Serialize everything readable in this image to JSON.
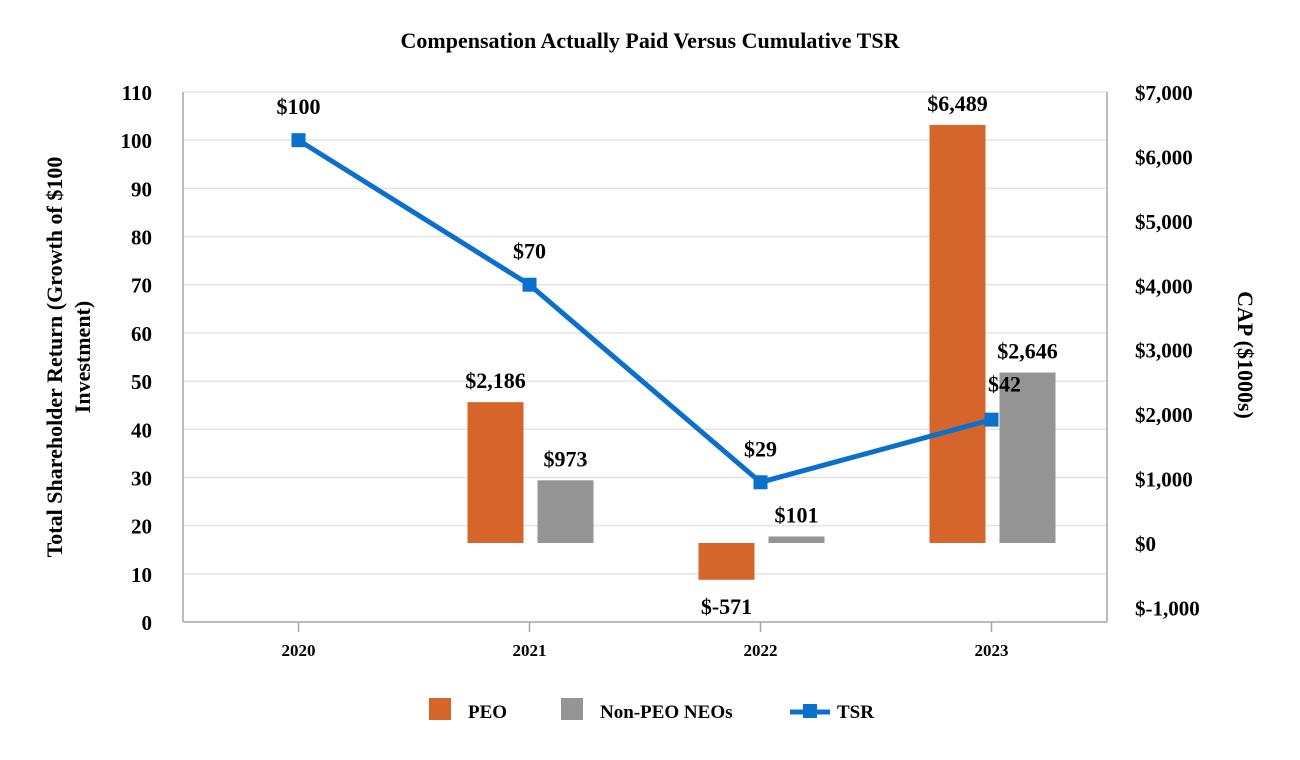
{
  "chart_data": {
    "type": "bar+line",
    "title": "Compensation Actually Paid Versus Cumulative TSR",
    "categories": [
      "2020",
      "2021",
      "2022",
      "2023"
    ],
    "y_left": {
      "label": "Total Shareholder Return (Growth of $100 Investment)",
      "label_lines": [
        "Total Shareholder Return (Growth of $100",
        "Investment)"
      ],
      "range": [
        0,
        110
      ],
      "ticks": [
        0,
        10,
        20,
        30,
        40,
        50,
        60,
        70,
        80,
        90,
        100,
        110
      ]
    },
    "y_right": {
      "label": "CAP ($1000s)",
      "range": [
        -1000,
        7000
      ],
      "ticks": [
        -1000,
        0,
        1000,
        2000,
        3000,
        4000,
        5000,
        6000,
        7000
      ],
      "tick_labels": [
        "$-1,000",
        "$0",
        "$1,000",
        "$2,000",
        "$3,000",
        "$4,000",
        "$5,000",
        "$6,000",
        "$7,000"
      ]
    },
    "grid": true,
    "legend_position": "bottom",
    "series": [
      {
        "name": "PEO",
        "type": "bar",
        "axis": "right",
        "color": "#D6652B",
        "values": [
          null,
          2186,
          -571,
          6489
        ],
        "labels": [
          "",
          "$2,186",
          "$-571",
          "$6,489"
        ]
      },
      {
        "name": "Non-PEO NEOs",
        "type": "bar",
        "axis": "right",
        "color": "#959595",
        "values": [
          null,
          973,
          101,
          2646
        ],
        "labels": [
          "",
          "$973",
          "$101",
          "$2,646"
        ]
      },
      {
        "name": "TSR",
        "type": "line",
        "axis": "left",
        "color": "#0B6FCC",
        "marker": "square",
        "values": [
          100,
          70,
          29,
          42
        ],
        "labels": [
          "$100",
          "$70",
          "$29",
          "$42"
        ]
      }
    ]
  }
}
